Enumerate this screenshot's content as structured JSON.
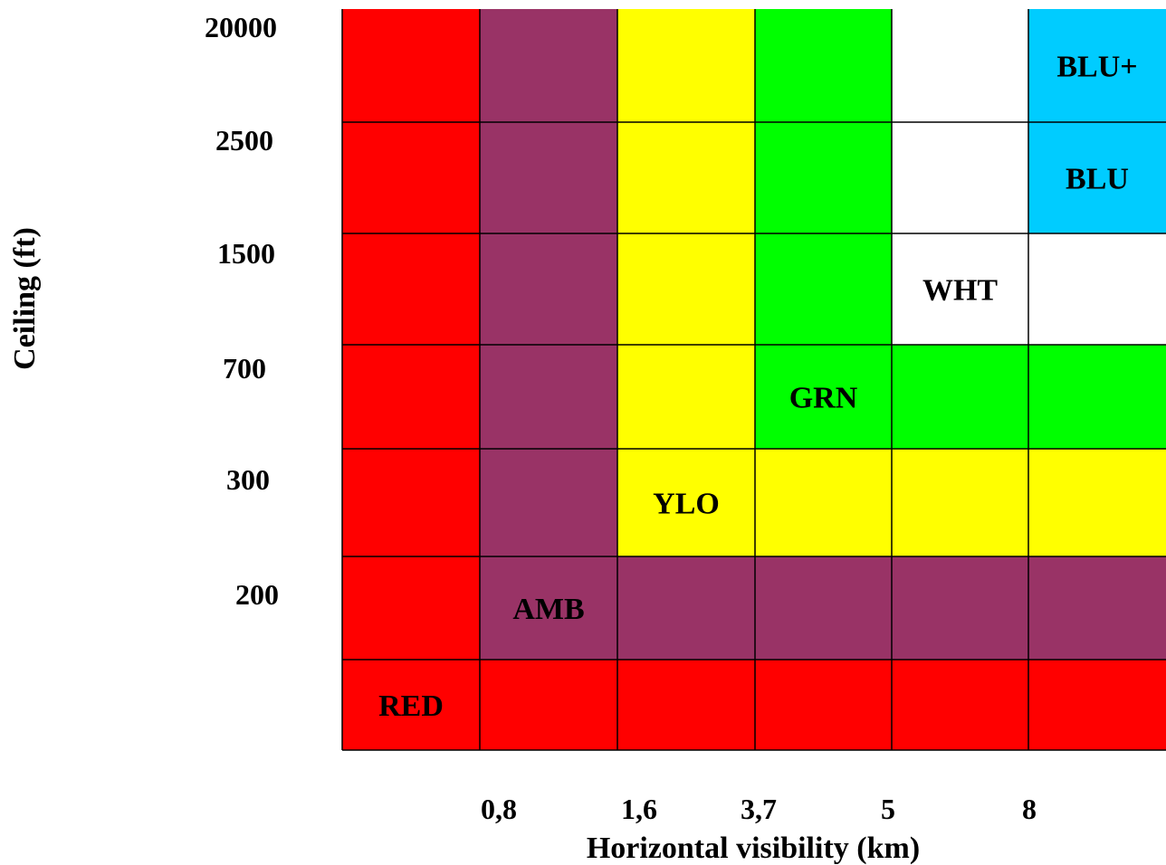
{
  "chart_data": {
    "type": "heatmap",
    "title": "",
    "xlabel": "Horizontal visibility (km)",
    "ylabel": "Ceiling (ft)",
    "x_ticks": [
      "0,8",
      "1,6",
      "3,7",
      "5",
      "8"
    ],
    "y_ticks": [
      "20000",
      "2500",
      "1500",
      "700",
      "300",
      "200"
    ],
    "grid": true,
    "categories_colors": {
      "RED": "#ff0000",
      "AMB": "#993366",
      "YLO": "#ffff00",
      "GRN": "#00ff00",
      "WHT": "#ffffff",
      "BLU": "#00ccff",
      "BLU+": "#00ccff"
    },
    "rows": [
      [
        "RED",
        "AMB",
        "YLO",
        "GRN",
        "WHT",
        "BLU+"
      ],
      [
        "RED",
        "AMB",
        "YLO",
        "GRN",
        "WHT",
        "BLU"
      ],
      [
        "RED",
        "AMB",
        "YLO",
        "GRN",
        "WHT",
        "WHT"
      ],
      [
        "RED",
        "AMB",
        "YLO",
        "GRN",
        "GRN",
        "GRN"
      ],
      [
        "RED",
        "AMB",
        "YLO",
        "YLO",
        "YLO",
        "YLO"
      ],
      [
        "RED",
        "AMB",
        "AMB",
        "AMB",
        "AMB",
        "AMB"
      ],
      [
        "RED",
        "RED",
        "RED",
        "RED",
        "RED",
        "RED"
      ]
    ],
    "labels": [
      {
        "text": "BLU+",
        "row": 0,
        "col": 5
      },
      {
        "text": "BLU",
        "row": 1,
        "col": 5
      },
      {
        "text": "WHT",
        "row": 2,
        "col": 4
      },
      {
        "text": "GRN",
        "row": 3,
        "col": 3
      },
      {
        "text": "YLO",
        "row": 4,
        "col": 2
      },
      {
        "text": "AMB",
        "row": 5,
        "col": 1
      },
      {
        "text": "RED",
        "row": 6,
        "col": 0
      }
    ]
  }
}
